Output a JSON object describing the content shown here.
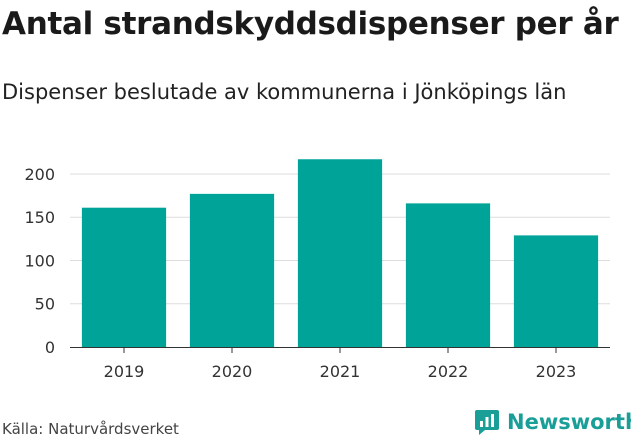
{
  "header": {
    "title": "Antal strandskyddsdispenser per år",
    "subtitle": "Dispenser beslutade av kommunerna i Jönköpings län"
  },
  "footer": {
    "source": "Källa: Naturvårdsverket",
    "brand": "Newsworthy"
  },
  "colors": {
    "bar": "#00a398",
    "grid": "#dddddd",
    "axis": "#333333",
    "brand": "#1a9e98"
  },
  "chart_data": {
    "type": "bar",
    "title": "Antal strandskyddsdispenser per år",
    "subtitle": "Dispenser beslutade av kommunerna i Jönköpings län",
    "xlabel": "",
    "ylabel": "",
    "categories": [
      "2019",
      "2020",
      "2021",
      "2022",
      "2023"
    ],
    "values": [
      161,
      177,
      217,
      166,
      129
    ],
    "ylim": [
      0,
      230
    ],
    "yticks": [
      0,
      50,
      100,
      150,
      200
    ],
    "grid": true,
    "legend": "none"
  }
}
